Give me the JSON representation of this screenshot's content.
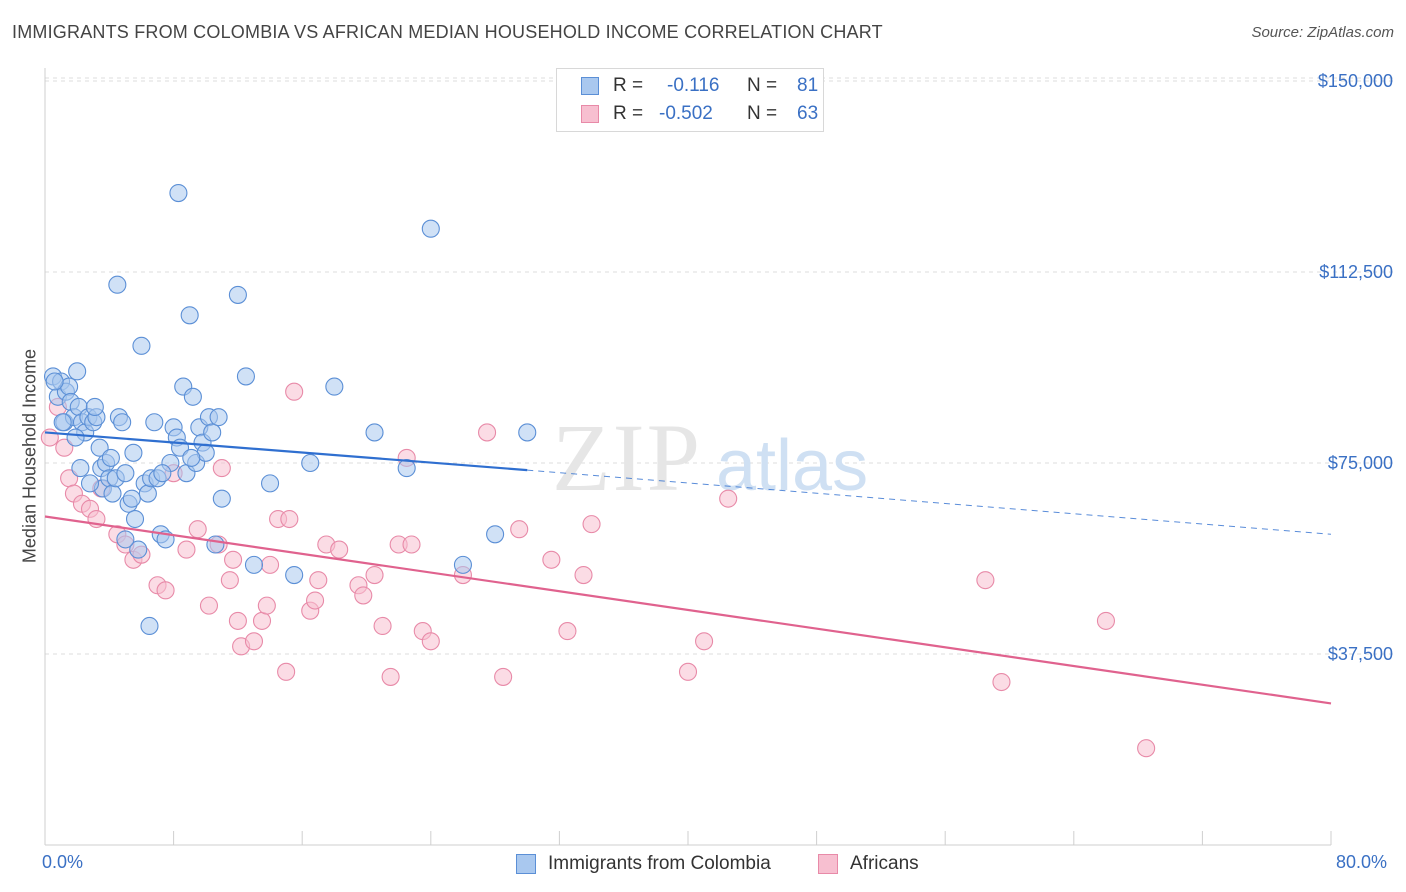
{
  "title": "IMMIGRANTS FROM COLOMBIA VS AFRICAN MEDIAN HOUSEHOLD INCOME CORRELATION CHART",
  "source": "Source: ZipAtlas.com",
  "watermark": {
    "zip": "ZIP",
    "atlas": "atlas"
  },
  "legend": {
    "row1": {
      "r_label": "R =",
      "r_value": "-0.116",
      "n_label": "N =",
      "n_value": "81"
    },
    "row2": {
      "r_label": "R =",
      "r_value": "-0.502",
      "n_label": "N =",
      "n_value": "63"
    }
  },
  "bottom_legend": {
    "series1": "Immigrants from Colombia",
    "series2": "Africans"
  },
  "colors": {
    "blue_fill": "#a9c8ef",
    "blue_stroke": "#5b8fd6",
    "blue_line": "#2f6fd0",
    "pink_fill": "#f7bfd0",
    "pink_stroke": "#e88aa8",
    "pink_line": "#e0628e",
    "axis_label": "#3a70c4",
    "grid": "#dcdcdc"
  },
  "chart_data": {
    "type": "scatter",
    "title": "IMMIGRANTS FROM COLOMBIA VS AFRICAN MEDIAN HOUSEHOLD INCOME CORRELATION CHART",
    "xlabel": "",
    "ylabel": "Median Household Income",
    "xlim": [
      0,
      80
    ],
    "ylim": [
      0,
      155000
    ],
    "x_tick_labels": [
      "0.0%",
      "80.0%"
    ],
    "y_ticks": [
      37500,
      75000,
      112500,
      150000
    ],
    "y_tick_labels": [
      "$37,500",
      "$75,000",
      "$112,500",
      "$150,000"
    ],
    "grid": true,
    "legend_position": "top-center",
    "series": [
      {
        "name": "Immigrants from Colombia",
        "r": -0.116,
        "n": 81,
        "trend": {
          "x0": 0,
          "y0": 81000,
          "x1": 30,
          "y1": 73600,
          "dash_to_x": 80,
          "dash_to_y": 61000
        },
        "points": [
          [
            0.5,
            92
          ],
          [
            0.8,
            88
          ],
          [
            1.0,
            91
          ],
          [
            1.2,
            83
          ],
          [
            1.3,
            89
          ],
          [
            1.5,
            90
          ],
          [
            1.6,
            87
          ],
          [
            1.8,
            84
          ],
          [
            2.0,
            93
          ],
          [
            2.1,
            86
          ],
          [
            2.3,
            83
          ],
          [
            2.5,
            81
          ],
          [
            2.7,
            84
          ],
          [
            3.0,
            83
          ],
          [
            3.2,
            84
          ],
          [
            3.4,
            78
          ],
          [
            3.5,
            74
          ],
          [
            3.6,
            70
          ],
          [
            3.8,
            75
          ],
          [
            4.0,
            72
          ],
          [
            4.2,
            69
          ],
          [
            4.4,
            72
          ],
          [
            4.6,
            84
          ],
          [
            4.8,
            83
          ],
          [
            5.0,
            73
          ],
          [
            5.2,
            67
          ],
          [
            5.4,
            68
          ],
          [
            5.6,
            64
          ],
          [
            5.8,
            58
          ],
          [
            5.0,
            60
          ],
          [
            6.0,
            98
          ],
          [
            6.2,
            71
          ],
          [
            6.4,
            69
          ],
          [
            6.6,
            72
          ],
          [
            6.8,
            83
          ],
          [
            7.0,
            72
          ],
          [
            7.2,
            61
          ],
          [
            7.5,
            60
          ],
          [
            7.8,
            75
          ],
          [
            8.0,
            82
          ],
          [
            8.2,
            80
          ],
          [
            8.4,
            78
          ],
          [
            8.6,
            90
          ],
          [
            8.8,
            73
          ],
          [
            9.0,
            104
          ],
          [
            9.2,
            88
          ],
          [
            9.4,
            75
          ],
          [
            9.6,
            82
          ],
          [
            9.8,
            79
          ],
          [
            10.0,
            77
          ],
          [
            10.2,
            84
          ],
          [
            10.4,
            81
          ],
          [
            10.6,
            59
          ],
          [
            10.8,
            84
          ],
          [
            11.0,
            68
          ],
          [
            12.0,
            108
          ],
          [
            12.5,
            92
          ],
          [
            13.0,
            55
          ],
          [
            14.0,
            71
          ],
          [
            15.5,
            53
          ],
          [
            16.5,
            75
          ],
          [
            18.0,
            90
          ],
          [
            20.5,
            81
          ],
          [
            22.5,
            74
          ],
          [
            24.0,
            121
          ],
          [
            26.0,
            55
          ],
          [
            28.0,
            61
          ],
          [
            30.0,
            81
          ],
          [
            8.3,
            128
          ],
          [
            4.5,
            110
          ],
          [
            6.5,
            43
          ],
          [
            2.2,
            74
          ],
          [
            1.9,
            80
          ],
          [
            3.1,
            86
          ],
          [
            4.1,
            76
          ],
          [
            0.6,
            91
          ],
          [
            1.1,
            83
          ],
          [
            2.8,
            71
          ],
          [
            5.5,
            77
          ],
          [
            7.3,
            73
          ],
          [
            9.1,
            76
          ]
        ]
      },
      {
        "name": "Africans",
        "r": -0.502,
        "n": 63,
        "trend": {
          "x0": 0,
          "y0": 64500,
          "x1": 80,
          "y1": 27800
        },
        "points": [
          [
            0.3,
            80
          ],
          [
            0.8,
            86
          ],
          [
            1.2,
            78
          ],
          [
            1.5,
            72
          ],
          [
            1.8,
            69
          ],
          [
            2.3,
            67
          ],
          [
            2.8,
            66
          ],
          [
            3.2,
            64
          ],
          [
            3.5,
            70
          ],
          [
            4.5,
            61
          ],
          [
            5.0,
            59
          ],
          [
            5.5,
            56
          ],
          [
            6.0,
            57
          ],
          [
            7.0,
            51
          ],
          [
            7.5,
            50
          ],
          [
            8.0,
            73
          ],
          [
            8.8,
            58
          ],
          [
            9.5,
            62
          ],
          [
            10.2,
            47
          ],
          [
            10.8,
            59
          ],
          [
            11.0,
            74
          ],
          [
            11.5,
            52
          ],
          [
            11.7,
            56
          ],
          [
            12.2,
            39
          ],
          [
            13.0,
            40
          ],
          [
            13.5,
            44
          ],
          [
            13.8,
            47
          ],
          [
            14.0,
            55
          ],
          [
            14.5,
            64
          ],
          [
            15.0,
            34
          ],
          [
            15.5,
            89
          ],
          [
            16.5,
            46
          ],
          [
            16.8,
            48
          ],
          [
            17.0,
            52
          ],
          [
            17.5,
            59
          ],
          [
            18.3,
            58
          ],
          [
            19.5,
            51
          ],
          [
            19.8,
            49
          ],
          [
            20.5,
            53
          ],
          [
            21.0,
            43
          ],
          [
            21.5,
            33
          ],
          [
            22.0,
            59
          ],
          [
            22.5,
            76
          ],
          [
            23.5,
            42
          ],
          [
            24.0,
            40
          ],
          [
            26.0,
            53
          ],
          [
            27.5,
            81
          ],
          [
            28.5,
            33
          ],
          [
            29.5,
            62
          ],
          [
            31.5,
            56
          ],
          [
            32.5,
            42
          ],
          [
            33.5,
            53
          ],
          [
            34.0,
            63
          ],
          [
            40.0,
            34
          ],
          [
            41.0,
            40
          ],
          [
            42.5,
            68
          ],
          [
            58.5,
            52
          ],
          [
            59.5,
            32
          ],
          [
            66.0,
            44
          ],
          [
            68.5,
            19
          ],
          [
            12.0,
            44
          ],
          [
            15.2,
            64
          ],
          [
            22.8,
            59
          ]
        ]
      }
    ]
  }
}
